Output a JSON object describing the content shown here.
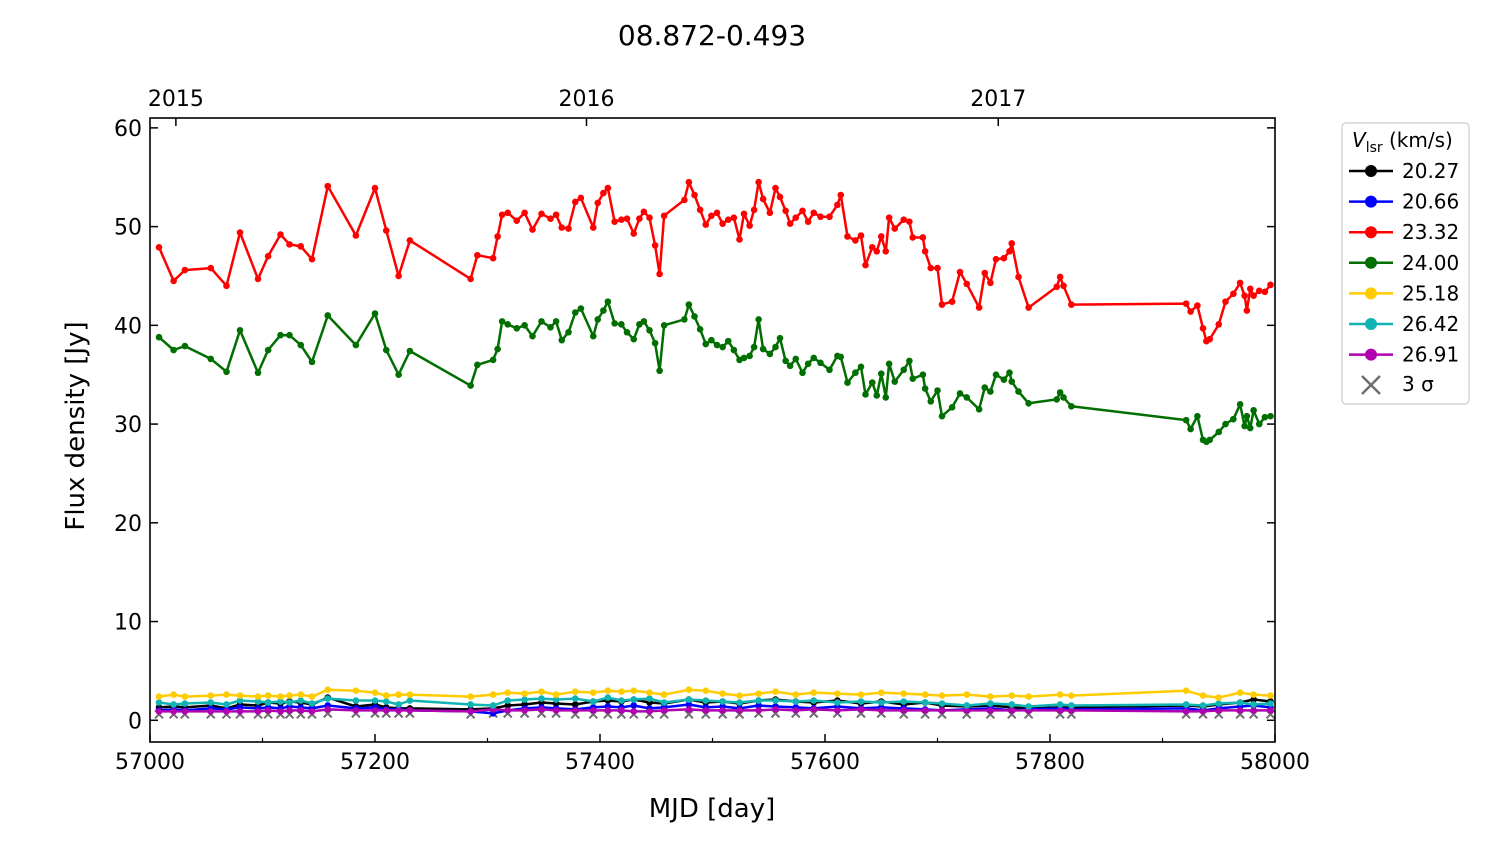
{
  "chart_data": {
    "type": "line",
    "title": "08.872-0.493",
    "xlabel": "MJD [day]",
    "ylabel": "Flux density [Jy]",
    "xlim": [
      57000,
      58000
    ],
    "ylim": [
      -2.2,
      61
    ],
    "xticks": [
      57000,
      57200,
      57400,
      57600,
      57800,
      58000
    ],
    "yticks": [
      0,
      10,
      20,
      30,
      40,
      50,
      60
    ],
    "top_axis": {
      "ticks": [
        {
          "label": "2015",
          "mjd": 57023
        },
        {
          "label": "2016",
          "mjd": 57388
        },
        {
          "label": "2017",
          "mjd": 57754
        }
      ]
    },
    "grid": false,
    "legend": {
      "title_main": "V",
      "title_sub": "lsr",
      "title_unit": " (km/s)",
      "placement": "outside-top-right",
      "sigma_label": "3 σ"
    },
    "x_main": [
      57008,
      57021,
      57031,
      57054,
      57068,
      57080,
      57096,
      57105,
      57116,
      57124,
      57134,
      57144,
      57158,
      57183,
      57200,
      57210,
      57221,
      57231,
      57285,
      57291,
      57305,
      57309,
      57313,
      57318,
      57326,
      57333,
      57340,
      57348,
      57356,
      57361,
      57366,
      57372,
      57378,
      57383,
      57394,
      57398,
      57403,
      57407,
      57413,
      57419,
      57424,
      57430,
      57435,
      57439,
      57444,
      57449,
      57453,
      57457,
      57475,
      57479,
      57484,
      57489,
      57494,
      57499,
      57504,
      57509,
      57514,
      57519,
      57524,
      57528,
      57533,
      57537,
      57541,
      57545,
      57551,
      57556,
      57560,
      57565,
      57569,
      57574,
      57580,
      57585,
      57590,
      57596,
      57604,
      57611,
      57614,
      57620,
      57627,
      57632,
      57636,
      57642,
      57646,
      57650,
      57654,
      57657,
      57662,
      57670,
      57675,
      57678,
      57687,
      57689,
      57694,
      57700,
      57704,
      57713,
      57720,
      57726,
      57737,
      57742,
      57747,
      57752,
      57759,
      57764,
      57766,
      57772,
      57781,
      57806,
      57809,
      57812,
      57819,
      57921,
      57925,
      57931,
      57936,
      57939,
      57942,
      57950,
      57956,
      57963,
      57969,
      57973,
      57975,
      57978,
      57981,
      57986,
      57991,
      57996
    ],
    "x_low": [
      57008,
      57021,
      57031,
      57054,
      57068,
      57080,
      57096,
      57105,
      57116,
      57124,
      57134,
      57144,
      57158,
      57183,
      57200,
      57210,
      57221,
      57231,
      57285,
      57305,
      57318,
      57333,
      57348,
      57361,
      57378,
      57394,
      57407,
      57419,
      57430,
      57444,
      57457,
      57479,
      57494,
      57509,
      57524,
      57541,
      57556,
      57574,
      57590,
      57611,
      57632,
      57650,
      57670,
      57689,
      57704,
      57726,
      57747,
      57766,
      57781,
      57809,
      57819,
      57921,
      57936,
      57950,
      57969,
      57981,
      57996
    ],
    "series": [
      {
        "name": "20.27",
        "color": "#000000",
        "xkey": "x_low",
        "values": [
          1.3,
          1.4,
          1.3,
          1.5,
          1.2,
          1.6,
          1.5,
          1.8,
          1.7,
          1.9,
          1.8,
          1.6,
          2.3,
          1.4,
          1.6,
          1.3,
          1.2,
          1.2,
          1.1,
          1.2,
          1.5,
          1.6,
          1.8,
          1.7,
          1.6,
          1.9,
          2.0,
          1.9,
          2.1,
          1.8,
          1.7,
          2.1,
          1.8,
          1.9,
          1.7,
          2.0,
          2.1,
          1.9,
          1.8,
          2.0,
          1.7,
          1.9,
          1.6,
          1.8,
          1.5,
          1.4,
          1.5,
          1.3,
          1.2,
          1.3,
          1.3,
          1.5,
          1.4,
          1.6,
          1.8,
          2.1,
          1.9
        ]
      },
      {
        "name": "20.66",
        "color": "#0000ff",
        "xkey": "x_low",
        "values": [
          1.0,
          1.1,
          1.0,
          1.2,
          1.1,
          1.3,
          1.2,
          1.3,
          1.2,
          1.4,
          1.3,
          1.2,
          1.5,
          1.2,
          1.3,
          1.1,
          1.1,
          1.0,
          0.9,
          0.7,
          1.0,
          1.2,
          1.3,
          1.2,
          1.1,
          1.3,
          1.4,
          1.3,
          1.5,
          1.2,
          1.3,
          1.6,
          1.3,
          1.4,
          1.2,
          1.5,
          1.4,
          1.3,
          1.2,
          1.4,
          1.2,
          1.3,
          1.2,
          1.1,
          1.0,
          1.1,
          1.2,
          1.0,
          1.1,
          1.2,
          1.1,
          1.2,
          1.0,
          1.2,
          1.4,
          1.5,
          1.3
        ]
      },
      {
        "name": "23.32",
        "color": "#ff0000",
        "xkey": "x_main",
        "values": [
          47.9,
          44.5,
          45.6,
          45.8,
          44.0,
          49.4,
          44.7,
          47.0,
          49.2,
          48.2,
          48.0,
          46.7,
          54.1,
          49.1,
          53.9,
          49.6,
          45.0,
          48.6,
          44.7,
          47.1,
          46.8,
          49.0,
          51.2,
          51.4,
          50.6,
          51.4,
          49.7,
          51.3,
          50.8,
          51.2,
          49.9,
          49.8,
          52.5,
          52.9,
          49.9,
          52.4,
          53.4,
          53.9,
          50.5,
          50.7,
          50.8,
          49.3,
          50.8,
          51.5,
          50.9,
          48.1,
          45.2,
          51.1,
          52.7,
          54.5,
          53.2,
          51.7,
          50.2,
          51.1,
          51.4,
          50.3,
          50.7,
          50.9,
          48.7,
          51.3,
          50.1,
          51.7,
          54.5,
          52.8,
          51.4,
          53.9,
          53.0,
          51.6,
          50.3,
          50.9,
          51.6,
          50.5,
          51.4,
          51.0,
          51.0,
          52.2,
          53.2,
          49.0,
          48.6,
          49.1,
          46.1,
          47.9,
          47.5,
          49.0,
          47.5,
          50.9,
          49.8,
          50.7,
          50.5,
          48.9,
          48.9,
          47.5,
          45.8,
          45.8,
          42.1,
          42.4,
          45.4,
          44.2,
          41.8,
          45.3,
          44.3,
          46.7,
          46.8,
          47.5,
          48.3,
          44.9,
          41.8,
          43.9,
          44.9,
          44.0,
          42.1,
          42.2,
          41.4,
          42.0,
          39.7,
          38.4,
          38.6,
          40.1,
          42.4,
          43.2,
          44.3,
          43.0,
          41.5,
          43.7,
          43.0,
          43.5,
          43.4,
          44.1
        ]
      },
      {
        "name": "24.00",
        "color": "#006e00",
        "xkey": "x_main",
        "values": [
          38.8,
          37.5,
          37.9,
          36.6,
          35.3,
          39.5,
          35.2,
          37.5,
          39.0,
          39.0,
          38.0,
          36.3,
          41.0,
          38.0,
          41.2,
          37.5,
          35.0,
          37.4,
          33.9,
          36.0,
          36.5,
          37.6,
          40.4,
          40.1,
          39.7,
          40.0,
          38.9,
          40.4,
          39.8,
          40.4,
          38.5,
          39.3,
          41.3,
          41.7,
          38.9,
          40.6,
          41.5,
          42.4,
          40.2,
          40.1,
          39.3,
          38.6,
          40.1,
          40.4,
          39.5,
          38.2,
          35.4,
          40.0,
          40.6,
          42.1,
          40.9,
          39.6,
          38.1,
          38.5,
          38.0,
          37.8,
          38.4,
          37.5,
          36.5,
          36.7,
          36.9,
          37.8,
          40.6,
          37.6,
          37.1,
          37.8,
          38.7,
          36.4,
          35.9,
          36.6,
          35.2,
          36.1,
          36.7,
          36.2,
          35.5,
          36.9,
          36.8,
          34.2,
          35.2,
          35.8,
          33.0,
          34.2,
          32.9,
          35.1,
          32.7,
          36.1,
          34.3,
          35.5,
          36.4,
          34.6,
          35.0,
          33.6,
          32.3,
          33.4,
          30.8,
          31.7,
          33.1,
          32.7,
          31.5,
          33.7,
          33.3,
          35.0,
          34.5,
          35.2,
          34.3,
          33.3,
          32.1,
          32.5,
          33.2,
          32.7,
          31.8,
          30.4,
          29.5,
          30.8,
          28.4,
          28.2,
          28.4,
          29.2,
          30.0,
          30.5,
          32.0,
          29.8,
          30.8,
          29.6,
          31.4,
          30.0,
          30.7,
          30.8
        ]
      },
      {
        "name": "25.18",
        "color": "#ffcc00",
        "xkey": "x_low",
        "values": [
          2.4,
          2.6,
          2.4,
          2.5,
          2.6,
          2.5,
          2.4,
          2.5,
          2.4,
          2.5,
          2.6,
          2.4,
          3.1,
          3.0,
          2.8,
          2.5,
          2.6,
          2.6,
          2.4,
          2.6,
          2.8,
          2.7,
          2.9,
          2.6,
          2.9,
          2.8,
          3.0,
          2.9,
          3.0,
          2.8,
          2.6,
          3.1,
          3.0,
          2.7,
          2.5,
          2.7,
          2.9,
          2.6,
          2.8,
          2.7,
          2.6,
          2.8,
          2.7,
          2.6,
          2.5,
          2.6,
          2.4,
          2.5,
          2.4,
          2.6,
          2.5,
          3.0,
          2.5,
          2.3,
          2.8,
          2.6,
          2.5
        ]
      },
      {
        "name": "26.42",
        "color": "#12b3b3",
        "xkey": "x_low",
        "values": [
          1.8,
          1.6,
          1.7,
          1.8,
          1.6,
          2.0,
          1.9,
          1.8,
          1.9,
          1.8,
          2.0,
          1.7,
          2.2,
          2.0,
          2.0,
          1.9,
          1.6,
          2.0,
          1.6,
          1.5,
          2.0,
          2.1,
          2.2,
          2.1,
          2.2,
          1.9,
          2.3,
          2.0,
          2.1,
          2.2,
          1.8,
          2.1,
          2.0,
          1.9,
          1.8,
          2.0,
          2.0,
          1.9,
          2.0,
          1.8,
          1.9,
          1.8,
          1.9,
          1.8,
          1.7,
          1.5,
          1.7,
          1.6,
          1.4,
          1.6,
          1.5,
          1.6,
          1.5,
          1.7,
          1.8,
          1.6,
          1.7
        ]
      },
      {
        "name": "26.91",
        "color": "#b000b0",
        "xkey": "x_low",
        "values": [
          0.9,
          0.9,
          0.9,
          0.9,
          0.9,
          0.9,
          0.9,
          1.0,
          0.9,
          1.0,
          1.0,
          0.9,
          1.1,
          1.0,
          1.0,
          1.0,
          1.0,
          1.0,
          0.9,
          1.1,
          1.0,
          1.0,
          1.1,
          1.0,
          1.0,
          1.0,
          1.0,
          1.0,
          0.9,
          0.9,
          1.0,
          1.1,
          1.0,
          1.0,
          1.0,
          1.0,
          1.1,
          1.0,
          1.1,
          1.0,
          1.1,
          1.0,
          1.0,
          1.0,
          1.0,
          1.0,
          1.0,
          1.0,
          1.0,
          1.0,
          1.0,
          0.9,
          0.9,
          1.0,
          1.0,
          1.0,
          1.0
        ]
      }
    ],
    "sigma_points": {
      "color": "#6e6e6e",
      "xkey": "x_low",
      "values": [
        0.6,
        0.6,
        0.6,
        0.6,
        0.6,
        0.6,
        0.6,
        0.6,
        0.6,
        0.6,
        0.6,
        0.6,
        0.7,
        0.7,
        0.7,
        0.7,
        0.7,
        0.7,
        0.6,
        0.7,
        0.7,
        0.7,
        0.7,
        0.7,
        0.6,
        0.6,
        0.6,
        0.6,
        0.6,
        0.6,
        0.6,
        0.6,
        0.6,
        0.6,
        0.6,
        0.7,
        0.7,
        0.7,
        0.7,
        0.7,
        0.7,
        0.7,
        0.6,
        0.6,
        0.6,
        0.6,
        0.6,
        0.6,
        0.6,
        0.6,
        0.6,
        0.6,
        0.6,
        0.6,
        0.6,
        0.6,
        0.6
      ]
    }
  }
}
